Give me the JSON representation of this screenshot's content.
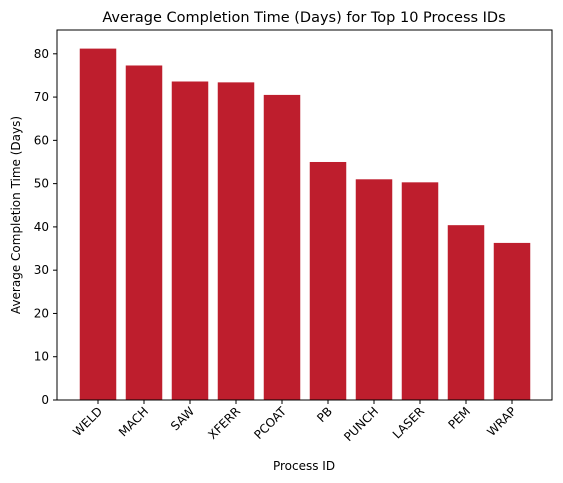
{
  "chart_data": {
    "type": "bar",
    "title": "Average Completion Time (Days) for Top 10 Process IDs",
    "xlabel": "Process ID",
    "ylabel": "Average Completion Time (Days)",
    "categories": [
      "WELD",
      "MACH",
      "SAW",
      "XFERR",
      "PCOAT",
      "PB",
      "PUNCH",
      "LASER",
      "PEM",
      "WRAP"
    ],
    "values": [
      81.2,
      77.3,
      73.6,
      73.4,
      70.5,
      55.0,
      51.0,
      50.3,
      40.4,
      36.3
    ],
    "ylim": [
      0,
      85.5
    ],
    "yticks": [
      "0",
      "10",
      "20",
      "30",
      "40",
      "50",
      "60",
      "70",
      "80"
    ],
    "grid": false,
    "legend": "none",
    "bar_color": "#be1e2d"
  }
}
